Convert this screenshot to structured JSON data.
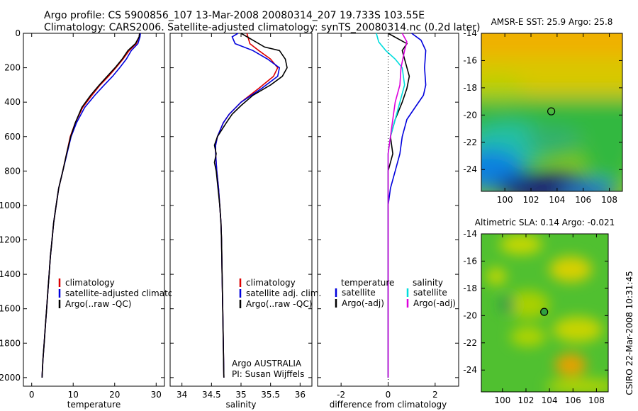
{
  "header": {
    "line1": "Argo profile: CS 5900856_107 13-Mar-2008 20080314_207 19.733S 103.55E",
    "line2": "Climatology: CARS2006. Satellite-adjusted climatology: synTS_20080314.nc (0.2d later)"
  },
  "colors": {
    "climatology": "#dd0000",
    "satellite": "#0000dd",
    "argo": "#000000",
    "salinity_satellite": "#00dddd",
    "salinity_argo": "#dd00dd"
  },
  "credit": "CSIRO 22-Mar-2008 10:31:45",
  "chart_data": [
    {
      "type": "line",
      "xlabel": "temperature",
      "ylabel": "",
      "xlim": [
        -2,
        32
      ],
      "ylim": [
        2050,
        0
      ],
      "xticks": [
        0,
        10,
        20,
        30
      ],
      "yticks": [
        0,
        200,
        400,
        600,
        800,
        1000,
        1200,
        1400,
        1600,
        1800,
        2000
      ],
      "legend": {
        "entries": [
          "climatology",
          "satellite-adjusted climatology",
          "Argo(..raw -QC)"
        ],
        "position": "bottom"
      },
      "series": [
        {
          "name": "climatology",
          "color": "#dd0000",
          "points": [
            [
              26,
              0
            ],
            [
              25.9,
              20
            ],
            [
              25.2,
              60
            ],
            [
              23.5,
              100
            ],
            [
              22,
              150
            ],
            [
              20.3,
              200
            ],
            [
              18.5,
              250
            ],
            [
              16.5,
              300
            ],
            [
              14.5,
              360
            ],
            [
              12.3,
              430
            ],
            [
              10.5,
              520
            ],
            [
              9.3,
              600
            ],
            [
              8.4,
              700
            ],
            [
              7.5,
              800
            ],
            [
              6.5,
              900
            ],
            [
              5.9,
              1000
            ],
            [
              5.3,
              1100
            ],
            [
              4.9,
              1200
            ],
            [
              4.5,
              1300
            ],
            [
              4.2,
              1400
            ],
            [
              3.9,
              1500
            ],
            [
              3.6,
              1600
            ],
            [
              3.3,
              1700
            ],
            [
              3.0,
              1800
            ],
            [
              2.7,
              1900
            ],
            [
              2.5,
              2000
            ]
          ]
        },
        {
          "name": "satellite-adjusted climatology",
          "color": "#0000dd",
          "points": [
            [
              26.2,
              0
            ],
            [
              26.1,
              20
            ],
            [
              25.6,
              60
            ],
            [
              24,
              100
            ],
            [
              22.8,
              150
            ],
            [
              21.2,
              200
            ],
            [
              19.5,
              250
            ],
            [
              17.5,
              300
            ],
            [
              15.2,
              360
            ],
            [
              12.8,
              430
            ],
            [
              10.8,
              520
            ],
            [
              9.5,
              600
            ],
            [
              8.5,
              700
            ],
            [
              7.5,
              800
            ],
            [
              6.5,
              900
            ],
            [
              5.9,
              1000
            ],
            [
              5.3,
              1100
            ],
            [
              4.9,
              1200
            ],
            [
              4.5,
              1300
            ],
            [
              4.2,
              1400
            ],
            [
              3.9,
              1500
            ],
            [
              3.6,
              1600
            ],
            [
              3.3,
              1700
            ],
            [
              3.0,
              1800
            ],
            [
              2.7,
              1900
            ],
            [
              2.5,
              2000
            ]
          ]
        },
        {
          "name": "Argo(..raw -QC)",
          "color": "#000000",
          "points": [
            [
              26,
              0
            ],
            [
              25.9,
              20
            ],
            [
              25,
              60
            ],
            [
              23.2,
              100
            ],
            [
              21.8,
              150
            ],
            [
              20.1,
              200
            ],
            [
              18.2,
              250
            ],
            [
              16.3,
              300
            ],
            [
              14.2,
              360
            ],
            [
              12.1,
              430
            ],
            [
              10.5,
              520
            ],
            [
              9.4,
              600
            ],
            [
              8.4,
              700
            ],
            [
              7.5,
              800
            ],
            [
              6.5,
              900
            ],
            [
              5.9,
              1000
            ],
            [
              5.3,
              1100
            ],
            [
              4.9,
              1200
            ],
            [
              4.5,
              1300
            ],
            [
              4.2,
              1400
            ],
            [
              3.9,
              1500
            ],
            [
              3.6,
              1600
            ],
            [
              3.3,
              1700
            ],
            [
              3.0,
              1800
            ],
            [
              2.7,
              1900
            ],
            [
              2.5,
              2000
            ]
          ]
        }
      ]
    },
    {
      "type": "line",
      "xlabel": "salinity",
      "xlim": [
        33.8,
        36.2
      ],
      "ylim": [
        2050,
        0
      ],
      "xticks": [
        34,
        34.5,
        35,
        35.5,
        36
      ],
      "legend": {
        "entries": [
          "climatology",
          "satellite adj. clim.",
          "Argo(..raw -QC)"
        ],
        "position": "bottom"
      },
      "annotations": [
        "Argo AUSTRALIA",
        "PI: Susan Wijffels"
      ],
      "series": [
        {
          "name": "climatology",
          "color": "#dd0000",
          "points": [
            [
              35.1,
              0
            ],
            [
              35.15,
              60
            ],
            [
              35.3,
              100
            ],
            [
              35.5,
              150
            ],
            [
              35.62,
              200
            ],
            [
              35.55,
              250
            ],
            [
              35.3,
              320
            ],
            [
              35.0,
              400
            ],
            [
              34.8,
              470
            ],
            [
              34.7,
              520
            ],
            [
              34.6,
              600
            ],
            [
              34.57,
              650
            ],
            [
              34.57,
              700
            ],
            [
              34.59,
              800
            ],
            [
              34.62,
              900
            ],
            [
              34.64,
              1000
            ],
            [
              34.66,
              1100
            ],
            [
              34.67,
              1200
            ],
            [
              34.68,
              1400
            ],
            [
              34.69,
              1600
            ],
            [
              34.7,
              1800
            ],
            [
              34.71,
              2000
            ]
          ]
        },
        {
          "name": "satellite adj. clim.",
          "color": "#0000dd",
          "points": [
            [
              34.95,
              0
            ],
            [
              34.85,
              20
            ],
            [
              34.9,
              60
            ],
            [
              35.2,
              100
            ],
            [
              35.45,
              150
            ],
            [
              35.65,
              200
            ],
            [
              35.62,
              250
            ],
            [
              35.35,
              320
            ],
            [
              35.0,
              400
            ],
            [
              34.8,
              470
            ],
            [
              34.7,
              520
            ],
            [
              34.6,
              600
            ],
            [
              34.57,
              650
            ],
            [
              34.57,
              700
            ],
            [
              34.59,
              800
            ],
            [
              34.62,
              900
            ],
            [
              34.64,
              1000
            ],
            [
              34.66,
              1100
            ],
            [
              34.67,
              1200
            ],
            [
              34.68,
              1400
            ],
            [
              34.69,
              1600
            ],
            [
              34.7,
              1800
            ],
            [
              34.71,
              2000
            ]
          ]
        },
        {
          "name": "Argo(..raw -QC)",
          "color": "#000000",
          "points": [
            [
              35.0,
              0
            ],
            [
              35.2,
              40
            ],
            [
              35.4,
              80
            ],
            [
              35.65,
              100
            ],
            [
              35.75,
              150
            ],
            [
              35.78,
              200
            ],
            [
              35.7,
              250
            ],
            [
              35.5,
              300
            ],
            [
              35.2,
              360
            ],
            [
              35.0,
              420
            ],
            [
              34.85,
              470
            ],
            [
              34.75,
              520
            ],
            [
              34.6,
              600
            ],
            [
              34.55,
              650
            ],
            [
              34.58,
              700
            ],
            [
              34.55,
              750
            ],
            [
              34.58,
              800
            ],
            [
              34.61,
              900
            ],
            [
              34.64,
              1000
            ],
            [
              34.66,
              1100
            ],
            [
              34.67,
              1200
            ],
            [
              34.68,
              1400
            ],
            [
              34.69,
              1600
            ],
            [
              34.7,
              1800
            ],
            [
              34.71,
              2000
            ]
          ]
        }
      ]
    },
    {
      "type": "line",
      "xlabel": "difference from climatology",
      "xlim": [
        -3,
        3
      ],
      "ylim": [
        2050,
        0
      ],
      "xticks": [
        -2,
        0,
        2
      ],
      "legend": {
        "entries": [
          "temperature",
          "satellite",
          "Argo(-adj)",
          "salinity",
          "satellite",
          "Argo(-adj)"
        ],
        "position": "bottom"
      },
      "series": [
        {
          "name": "temperature satellite",
          "color": "#0000dd",
          "points": [
            [
              1.0,
              0
            ],
            [
              1.4,
              40
            ],
            [
              1.6,
              100
            ],
            [
              1.55,
              200
            ],
            [
              1.6,
              300
            ],
            [
              1.5,
              360
            ],
            [
              1.2,
              420
            ],
            [
              0.8,
              500
            ],
            [
              0.6,
              600
            ],
            [
              0.5,
              700
            ],
            [
              0.3,
              800
            ],
            [
              0.1,
              900
            ],
            [
              0,
              1000
            ],
            [
              0,
              2000
            ]
          ]
        },
        {
          "name": "temperature Argo(-adj)",
          "color": "#000000",
          "points": [
            [
              0,
              0
            ],
            [
              0.8,
              60
            ],
            [
              0.6,
              100
            ],
            [
              0.7,
              150
            ],
            [
              0.9,
              250
            ],
            [
              0.8,
              320
            ],
            [
              0.6,
              400
            ],
            [
              0.3,
              500
            ],
            [
              0.1,
              600
            ],
            [
              0.2,
              700
            ],
            [
              0,
              800
            ],
            [
              0,
              2000
            ]
          ]
        },
        {
          "name": "salinity satellite",
          "color": "#00dddd",
          "points": [
            [
              -0.5,
              0
            ],
            [
              -0.4,
              50
            ],
            [
              -0.1,
              100
            ],
            [
              0.3,
              150
            ],
            [
              0.6,
              200
            ],
            [
              0.7,
              300
            ],
            [
              0.5,
              400
            ],
            [
              0.3,
              500
            ],
            [
              0.1,
              600
            ],
            [
              0,
              700
            ],
            [
              0,
              2000
            ]
          ]
        },
        {
          "name": "salinity Argo(-adj)",
          "color": "#dd00dd",
          "points": [
            [
              0.6,
              0
            ],
            [
              0.8,
              50
            ],
            [
              0.7,
              100
            ],
            [
              0.55,
              200
            ],
            [
              0.5,
              300
            ],
            [
              0.3,
              400
            ],
            [
              0.2,
              500
            ],
            [
              0.1,
              600
            ],
            [
              0,
              700
            ],
            [
              0,
              2000
            ]
          ]
        }
      ]
    },
    {
      "type": "heatmap",
      "title": "AMSR-E SST: 25.9 Argo: 25.8",
      "xlim": [
        98.2,
        109
      ],
      "ylim": [
        -25.6,
        -14
      ],
      "xticks": [
        100,
        102,
        104,
        106,
        108
      ],
      "yticks": [
        -16,
        -18,
        -20,
        -22,
        -24
      ],
      "marker": [
        103.55,
        -19.73
      ]
    },
    {
      "type": "heatmap",
      "title": "Altimetric SLA: 0.14 Argo: -0.021",
      "xlim": [
        98.2,
        109
      ],
      "ylim": [
        -25.6,
        -14
      ],
      "xticks": [
        100,
        102,
        104,
        106,
        108
      ],
      "yticks": [
        -14,
        -16,
        -18,
        -20,
        -22,
        -24
      ],
      "marker": [
        103.55,
        -19.73
      ]
    }
  ]
}
